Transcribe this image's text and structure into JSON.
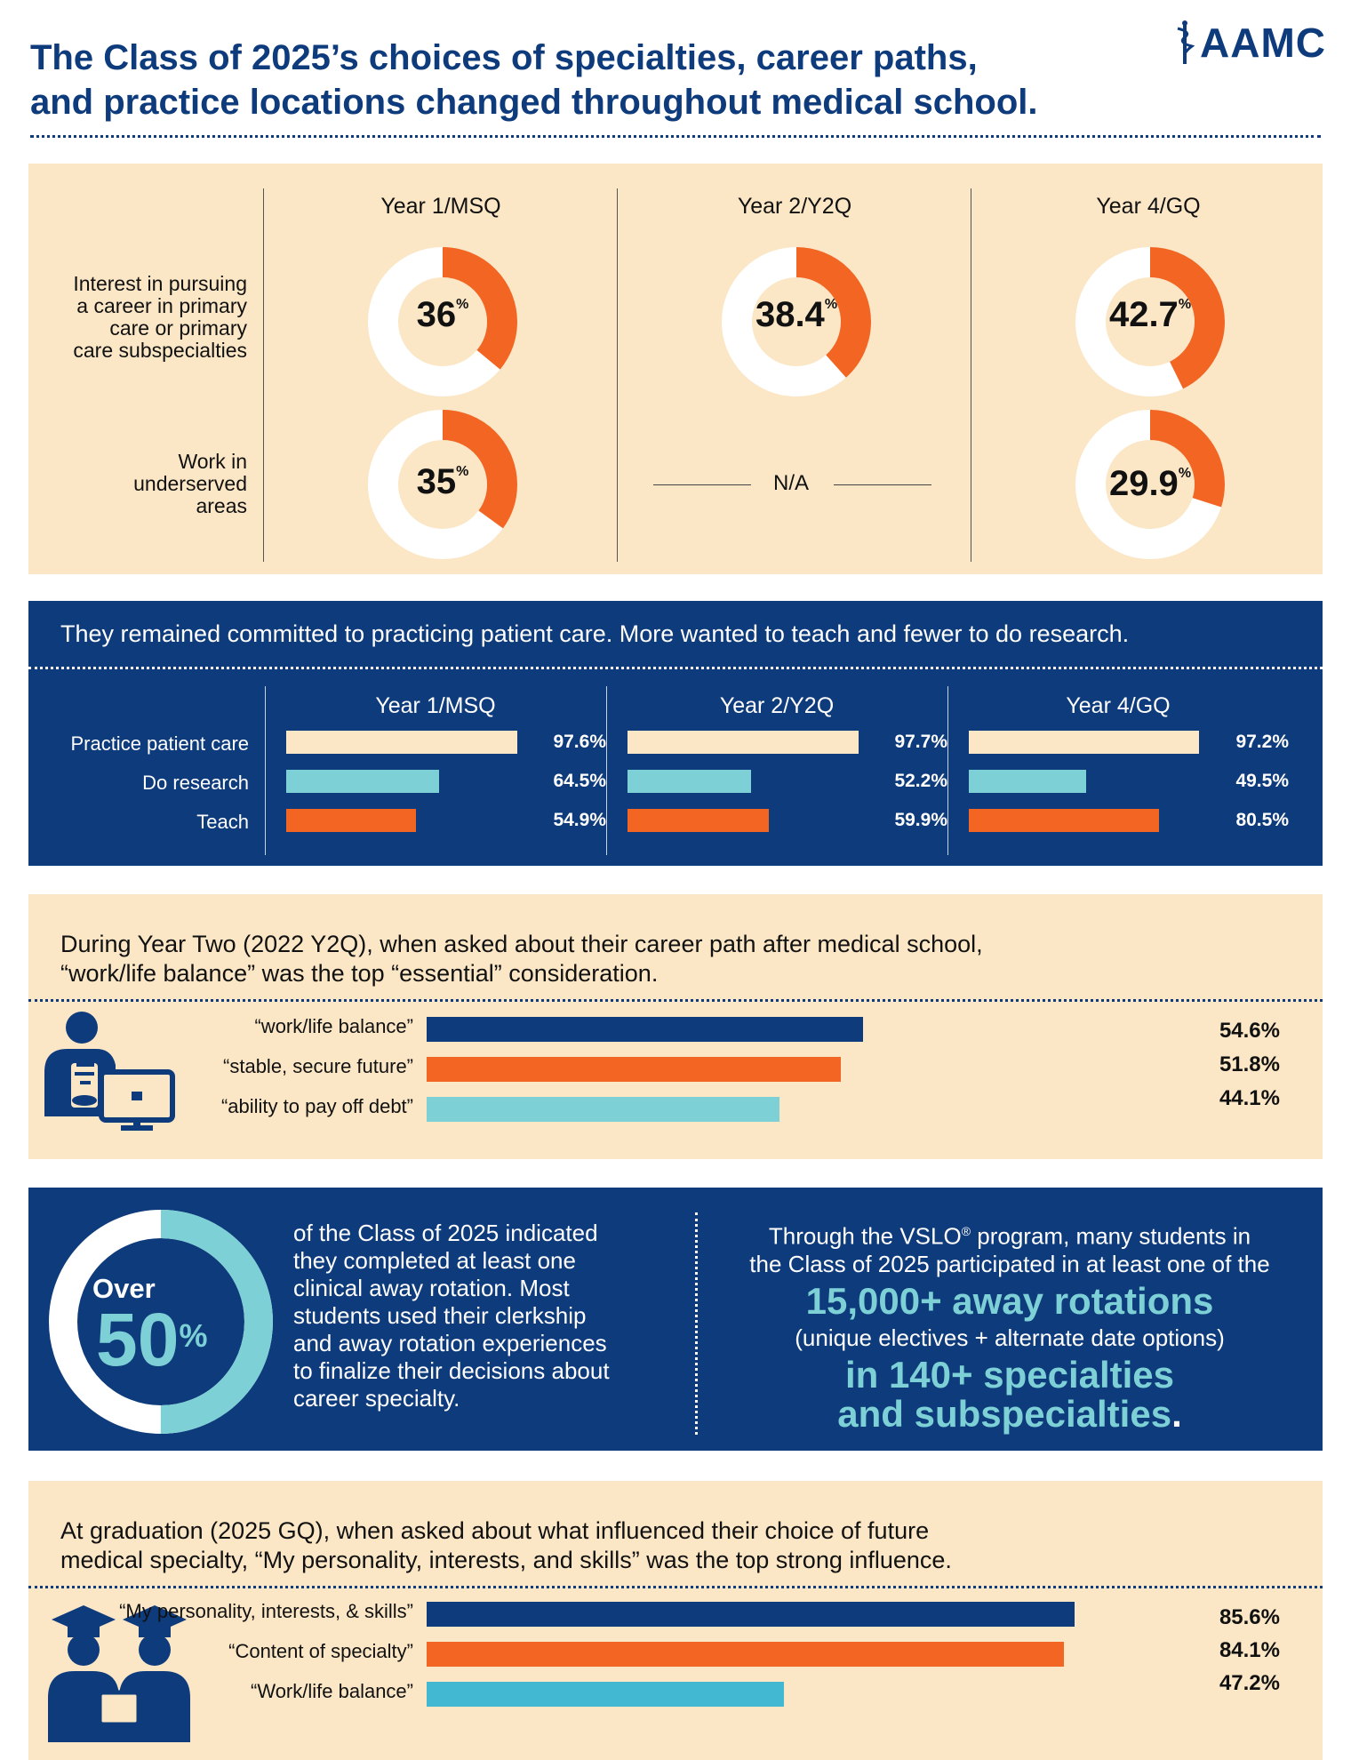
{
  "header": {
    "title_line1": "The Class of 2025’s choices of specialties, career paths,",
    "title_line2": "and practice locations changed throughout medical school.",
    "logo_text": "AAMC"
  },
  "colors": {
    "navy": "#0e3b7c",
    "orange": "#f26522",
    "cream": "#fbe7c6",
    "beige_bar": "#fbe7c6",
    "teal": "#7dd0d5",
    "teal_bright": "#42b8d3"
  },
  "section1": {
    "years": [
      "Year 1/MSQ",
      "Year 2/Y2Q",
      "Year 4/GQ"
    ],
    "row1_label": [
      "Interest in pursuing",
      "a career in primary",
      "care or primary",
      "care subspecialties"
    ],
    "row2_label": [
      "Work in",
      "underserved",
      "areas"
    ],
    "na_text": "N/A",
    "percent_sign": "%"
  },
  "section2": {
    "heading": "They remained committed to practicing patient care. More wanted to teach and fewer to do research.",
    "years": [
      "Year 1/MSQ",
      "Year 2/Y2Q",
      "Year 4/GQ"
    ],
    "row_labels": [
      "Practice patient care",
      "Do research",
      "Teach"
    ]
  },
  "section3": {
    "title_line1": "During Year Two (2022 Y2Q), when asked about their career path after medical school,",
    "title_line2": "“work/life balance” was the top “essential” consideration.",
    "icon": "person-at-computer-icon"
  },
  "section4": {
    "over_label": "Over",
    "big_value": "50",
    "percent_sign": "%",
    "left_text": [
      "of the Class of 2025 indicated",
      "they completed at least one",
      "clinical away rotation. Most",
      "students used their clerkship",
      "and away rotation experiences",
      "to finalize their decisions about",
      "career specialty."
    ],
    "right_line1": "Through the VSLO",
    "right_reg": "®",
    "right_line1b": " program, many students in",
    "right_line2": "the Class of 2025 participated in at least one of the",
    "right_big1": "15,000+ away rotations",
    "right_line3": "(unique electives + alternate date options)",
    "right_big2a": "in 140+ specialties",
    "right_big2b": "and subspecialties",
    "right_period": "."
  },
  "section5": {
    "title_line1": "At graduation (2025 GQ), when asked about what influenced their choice of future",
    "title_line2": "medical specialty, “My personality, interests, and skills” was the top strong influence.",
    "icon": "graduates-icon"
  },
  "chart_data": [
    {
      "type": "pie",
      "title": "Interest in pursuing a career in primary care or primary care subspecialties",
      "categories": [
        "Year 1/MSQ",
        "Year 2/Y2Q",
        "Year 4/GQ"
      ],
      "values": [
        36,
        38.4,
        42.7
      ],
      "labels": [
        "36",
        "38.4",
        "42.7"
      ],
      "unit": "%"
    },
    {
      "type": "pie",
      "title": "Work in underserved areas",
      "categories": [
        "Year 1/MSQ",
        "Year 2/Y2Q",
        "Year 4/GQ"
      ],
      "values": [
        35,
        null,
        29.9
      ],
      "labels": [
        "35",
        "N/A",
        "29.9"
      ],
      "unit": "%"
    },
    {
      "type": "bar",
      "orientation": "horizontal",
      "title": "They remained committed to practicing patient care. More wanted to teach and fewer to do research.",
      "categories": [
        "Practice patient care",
        "Do research",
        "Teach"
      ],
      "series": [
        {
          "name": "Year 1/MSQ",
          "values": [
            97.6,
            64.5,
            54.9
          ],
          "labels": [
            "97.6%",
            "64.5%",
            "54.9%"
          ]
        },
        {
          "name": "Year 2/Y2Q",
          "values": [
            97.7,
            52.2,
            59.9
          ],
          "labels": [
            "97.7%",
            "52.2%",
            "59.9%"
          ]
        },
        {
          "name": "Year 4/GQ",
          "values": [
            97.2,
            49.5,
            80.5
          ],
          "labels": [
            "97.2%",
            "49.5%",
            "80.5%"
          ]
        }
      ],
      "xlim": [
        0,
        100
      ]
    },
    {
      "type": "bar",
      "orientation": "horizontal",
      "title": "During Year Two (2022 Y2Q), when asked about their career path after medical school, “work/life balance” was the top “essential” consideration.",
      "categories": [
        "“work/life balance”",
        "“stable, secure future”",
        "“ability to pay off debt”"
      ],
      "values": [
        54.6,
        51.8,
        44.1
      ],
      "labels": [
        "54.6%",
        "51.8%",
        "44.1%"
      ],
      "xlim": [
        0,
        75
      ]
    },
    {
      "type": "pie",
      "title": "Over 50% of the Class of 2025 indicated they completed at least one clinical away rotation",
      "values": [
        50
      ],
      "unit": "%"
    },
    {
      "type": "bar",
      "orientation": "horizontal",
      "title": "At graduation (2025 GQ), when asked about what influenced their choice of future medical specialty, “My personality, interests, and skills” was the top strong influence.",
      "categories": [
        "“My personality, interests, & skills”",
        "“Content of specialty”",
        "“Work/life balance”"
      ],
      "values": [
        85.6,
        84.1,
        47.2
      ],
      "labels": [
        "85.6%",
        "84.1%",
        "47.2%"
      ],
      "xlim": [
        0,
        100
      ]
    }
  ]
}
